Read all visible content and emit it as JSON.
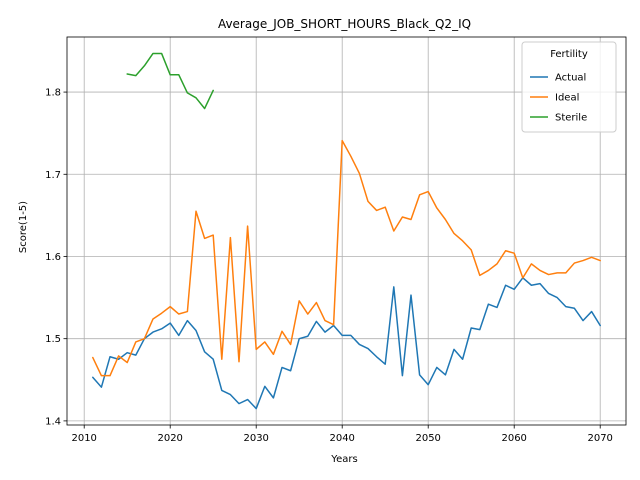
{
  "chart_data": {
    "type": "line",
    "title": "Average_JOB_SHORT_HOURS_Black_Q2_IQ",
    "xlabel": "Years",
    "ylabel": "Score(1-5)",
    "xlim": [
      2008,
      2073
    ],
    "ylim": [
      1.395,
      1.867
    ],
    "xticks": [
      2010,
      2020,
      2030,
      2040,
      2050,
      2060,
      2070
    ],
    "yticks": [
      1.4,
      1.5,
      1.6,
      1.7,
      1.8
    ],
    "ytick_labels": [
      "1.4",
      "1.5",
      "1.6",
      "1.7",
      "1.8"
    ],
    "grid": true,
    "legend": {
      "title": "Fertility",
      "placement": "top-right"
    },
    "series": [
      {
        "name": "Actual",
        "color": "#1f77b4",
        "x": [
          2011,
          2012,
          2013,
          2014,
          2015,
          2016,
          2017,
          2018,
          2019,
          2020,
          2021,
          2022,
          2023,
          2024,
          2025,
          2026,
          2027,
          2028,
          2029,
          2030,
          2031,
          2032,
          2033,
          2034,
          2035,
          2036,
          2037,
          2038,
          2039,
          2040,
          2041,
          2042,
          2043,
          2044,
          2045,
          2046,
          2047,
          2048,
          2049,
          2050,
          2051,
          2052,
          2053,
          2054,
          2055,
          2056,
          2057,
          2058,
          2059,
          2060,
          2061,
          2062,
          2063,
          2064,
          2065,
          2066,
          2067,
          2068,
          2069,
          2070
        ],
        "values": [
          1.453,
          1.441,
          1.478,
          1.475,
          1.483,
          1.48,
          1.5,
          1.508,
          1.512,
          1.519,
          1.504,
          1.522,
          1.51,
          1.484,
          1.475,
          1.437,
          1.432,
          1.421,
          1.426,
          1.415,
          1.442,
          1.428,
          1.465,
          1.461,
          1.5,
          1.503,
          1.521,
          1.508,
          1.516,
          1.504,
          1.504,
          1.493,
          1.488,
          1.478,
          1.469,
          1.563,
          1.455,
          1.553,
          1.456,
          1.444,
          1.465,
          1.456,
          1.487,
          1.475,
          1.513,
          1.511,
          1.542,
          1.538,
          1.565,
          1.56,
          1.574,
          1.565,
          1.567,
          1.555,
          1.55,
          1.539,
          1.537,
          1.522,
          1.533,
          1.516
        ]
      },
      {
        "name": "Ideal",
        "color": "#ff7f0e",
        "x": [
          2011,
          2012,
          2013,
          2014,
          2015,
          2016,
          2017,
          2018,
          2019,
          2020,
          2021,
          2022,
          2023,
          2024,
          2025,
          2026,
          2027,
          2028,
          2029,
          2030,
          2031,
          2032,
          2033,
          2034,
          2035,
          2036,
          2037,
          2038,
          2039,
          2040,
          2041,
          2042,
          2043,
          2044,
          2045,
          2046,
          2047,
          2048,
          2049,
          2050,
          2051,
          2052,
          2053,
          2054,
          2055,
          2056,
          2057,
          2058,
          2059,
          2060,
          2061,
          2062,
          2063,
          2064,
          2065,
          2066,
          2067,
          2068,
          2069,
          2070
        ],
        "values": [
          1.477,
          1.455,
          1.455,
          1.479,
          1.471,
          1.496,
          1.5,
          1.524,
          1.531,
          1.539,
          1.53,
          1.533,
          1.655,
          1.622,
          1.626,
          1.475,
          1.623,
          1.472,
          1.637,
          1.487,
          1.496,
          1.481,
          1.509,
          1.493,
          1.546,
          1.53,
          1.544,
          1.522,
          1.517,
          1.741,
          1.722,
          1.701,
          1.667,
          1.656,
          1.66,
          1.631,
          1.648,
          1.645,
          1.675,
          1.679,
          1.659,
          1.645,
          1.628,
          1.619,
          1.608,
          1.577,
          1.583,
          1.591,
          1.607,
          1.604,
          1.574,
          1.591,
          1.583,
          1.578,
          1.58,
          1.58,
          1.592,
          1.595,
          1.599,
          1.595
        ]
      },
      {
        "name": "Sterile",
        "color": "#2ca02c",
        "x": [
          2015,
          2016,
          2017,
          2018,
          2019,
          2020,
          2021,
          2022,
          2023,
          2024,
          2025
        ],
        "values": [
          1.822,
          1.82,
          1.832,
          1.847,
          1.847,
          1.821,
          1.821,
          1.799,
          1.793,
          1.78,
          1.802
        ]
      }
    ]
  }
}
